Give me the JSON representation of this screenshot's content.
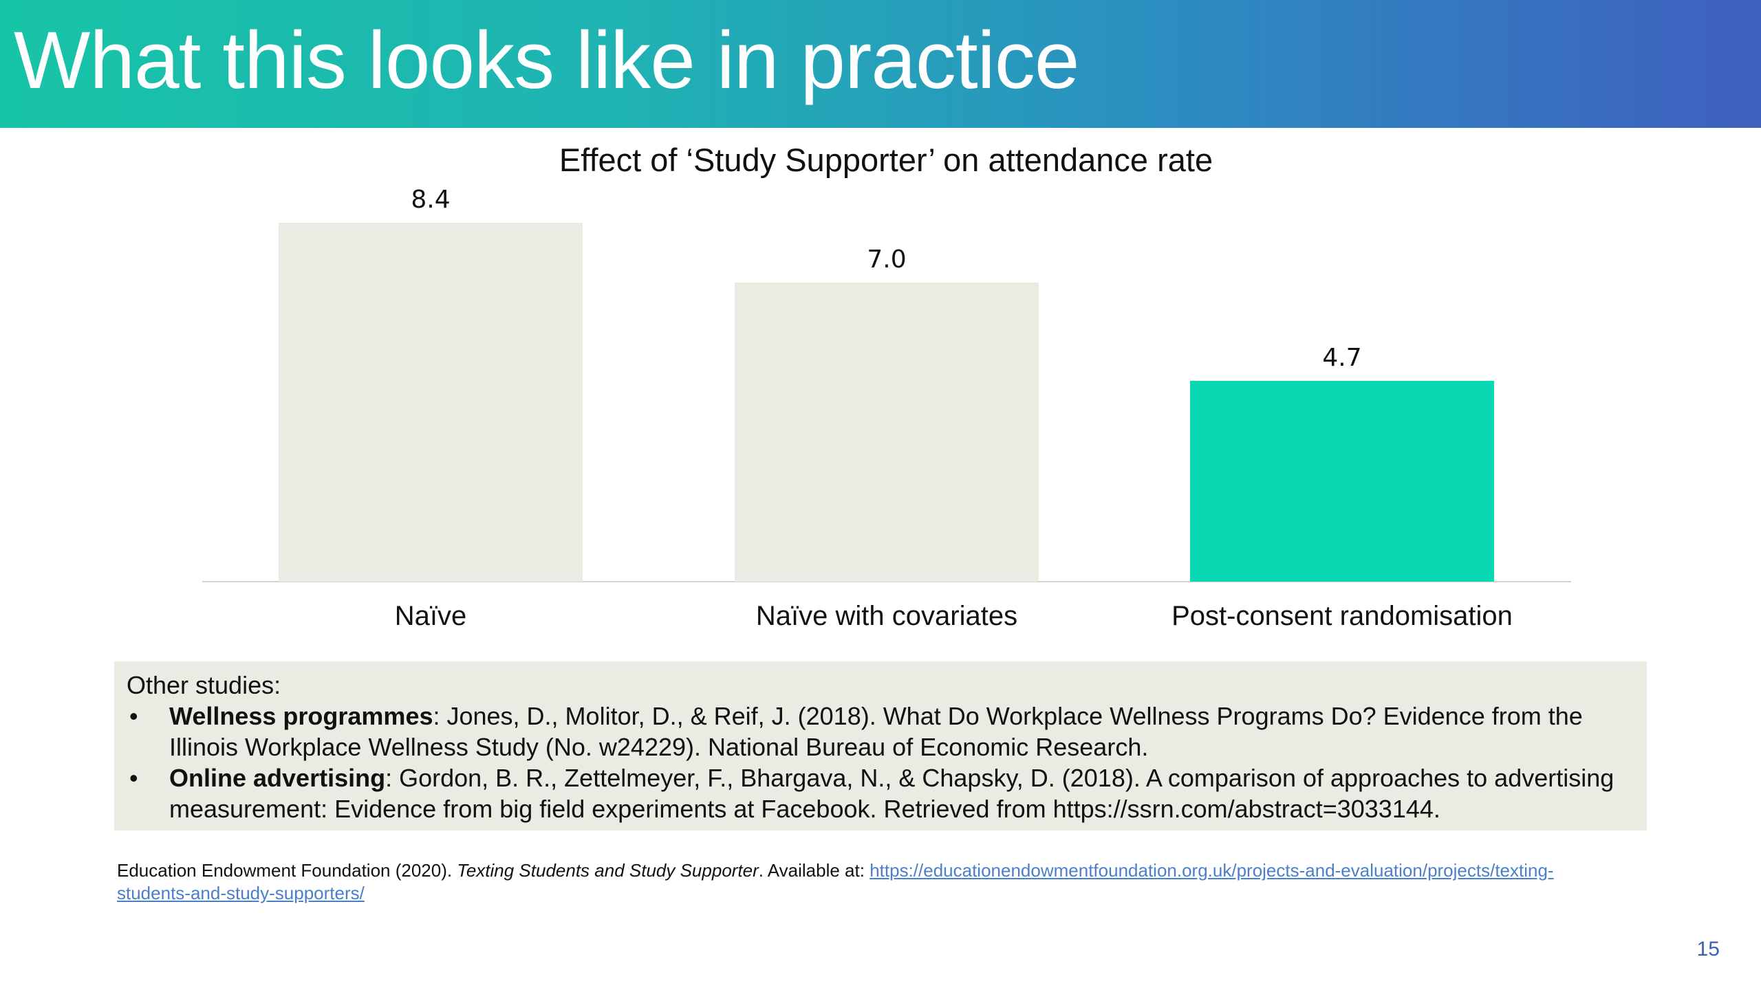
{
  "slide": {
    "title": "What this looks like in practice",
    "page_number": "15"
  },
  "colors": {
    "title_gradient": [
      "#17c4a6",
      "#3f5fbf"
    ],
    "bar_default": "#ebeae3",
    "bar_highlight": "#08d9b3",
    "link": "#4a7fc9",
    "page_number": "#3a62b8"
  },
  "chart_data": {
    "type": "bar",
    "title": "Effect of ‘Study Supporter’ on attendance rate",
    "categories": [
      "Naïve",
      "Naïve with covariates",
      "Post-consent randomisation"
    ],
    "values": [
      8.4,
      7.0,
      4.7
    ],
    "value_labels": [
      "8.4",
      "7.0",
      "4.7"
    ],
    "highlight_index": 2,
    "xlabel": "",
    "ylabel": "",
    "ylim": [
      0,
      8.4
    ],
    "grid": false,
    "legend": "none"
  },
  "other_studies": {
    "heading": "Other studies:",
    "items": [
      {
        "bullet": "•",
        "bold": "Wellness programmes",
        "text": ": Jones, D., Molitor, D., & Reif, J. (2018). What Do Workplace Wellness Programs Do? Evidence from the Illinois Workplace Wellness Study (No. w24229). National Bureau of Economic Research."
      },
      {
        "bullet": "•",
        "bold": "Online advertising",
        "text": ": Gordon, B. R., Zettelmeyer, F., Bhargava, N., & Chapsky, D. (2018). A comparison of approaches to advertising measurement: Evidence from big field experiments at Facebook. Retrieved from https://ssrn.com/abstract=3033144."
      }
    ]
  },
  "reference": {
    "prefix": "Education Endowment Foundation (2020). ",
    "italic": "Texting Students and Study Supporter",
    "middle": ". Available at: ",
    "link_text": "https://educationendowmentfoundation.org.uk/projects-and-evaluation/projects/texting-students-and-study-supporters/"
  }
}
